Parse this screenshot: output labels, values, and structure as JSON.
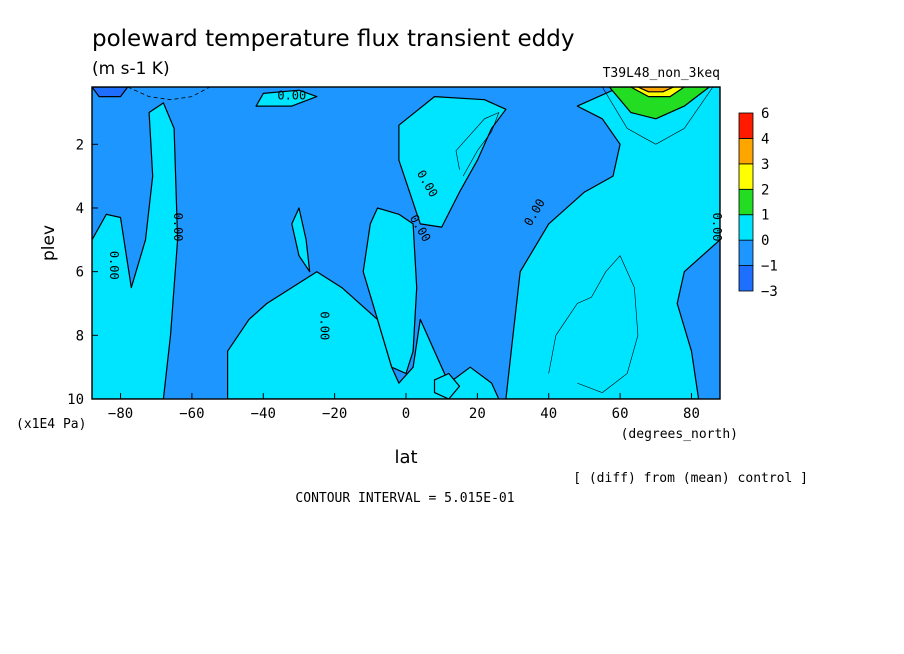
{
  "chart_data": {
    "type": "heatmap",
    "title": "poleward temperature flux transient eddy",
    "units": "(m s-1 K)",
    "run_label": "T39L48_non_3keq",
    "xlabel": "lat",
    "x_units": "(degrees_north)",
    "ylabel": "plev",
    "y_units": "(x1E4 Pa)",
    "xlim": [
      -88,
      88
    ],
    "ylim": [
      10,
      0.2
    ],
    "x_ticks": [
      -80,
      -60,
      -40,
      -20,
      0,
      20,
      40,
      60,
      80
    ],
    "x_tick_labels": [
      "−80",
      "−60",
      "−40",
      "−20",
      "0",
      "20",
      "40",
      "60",
      "80"
    ],
    "y_ticks": [
      2,
      4,
      6,
      8,
      10
    ],
    "y_tick_labels": [
      "2",
      "4",
      "6",
      "8",
      "10"
    ],
    "note": "[ (diff) from (mean) control ]",
    "contour_interval": "CONTOUR INTERVAL = 5.015E-01",
    "contour_label": "0.00",
    "colorbar": {
      "levels": [
        -3,
        -1,
        0,
        1,
        2,
        3,
        4,
        6
      ],
      "level_labels": [
        "−3",
        "−1",
        "0",
        "1",
        "2",
        "3",
        "4",
        "6"
      ],
      "colors": [
        "#1e6fff",
        "#1e96ff",
        "#00e5ff",
        "#22dd22",
        "#ffff00",
        "#ffa500",
        "#ff1a00"
      ]
    },
    "regions": [
      {
        "name": "negative",
        "range": "-1 to 0",
        "color": "#1e96ff",
        "points": [
          [
            -88,
            10
          ],
          [
            -88,
            0.2
          ],
          [
            -55,
            0.2
          ],
          [
            -48,
            0.9
          ],
          [
            -30,
            0.6
          ],
          [
            -20,
            0.4
          ],
          [
            -5,
            1.2
          ],
          [
            2,
            0.6
          ],
          [
            18,
            0.8
          ],
          [
            24,
            1.0
          ],
          [
            30,
            0.5
          ],
          [
            38,
            1.0
          ],
          [
            48,
            1.2
          ],
          [
            55,
            2.0
          ],
          [
            52,
            3.0
          ],
          [
            40,
            4.0
          ],
          [
            32,
            5.0
          ],
          [
            30,
            7.0
          ],
          [
            28,
            8.5
          ],
          [
            28,
            10
          ]
        ]
      },
      {
        "name": "positive-southern",
        "range": "0 to 1",
        "color": "#00e5ff",
        "points": [
          [
            -88,
            10
          ],
          [
            -88,
            5.0
          ],
          [
            -84,
            4.2
          ],
          [
            -80,
            4.3
          ],
          [
            -77,
            6.5
          ],
          [
            -73,
            5.0
          ],
          [
            -71,
            3.0
          ],
          [
            -72,
            1.0
          ],
          [
            -68,
            0.7
          ],
          [
            -65,
            1.5
          ],
          [
            -64,
            5.0
          ],
          [
            -66,
            8.0
          ],
          [
            -68,
            10
          ]
        ]
      },
      {
        "name": "positive-midlatitude",
        "range": "0 to 1",
        "color": "#00e5ff",
        "points": [
          [
            -50,
            10
          ],
          [
            -50,
            8.5
          ],
          [
            -44,
            7.5
          ],
          [
            -39,
            7.0
          ],
          [
            -32,
            6.5
          ],
          [
            -25,
            6.0
          ],
          [
            -18,
            6.5
          ],
          [
            -8,
            7.5
          ],
          [
            -4,
            9.0
          ],
          [
            -2,
            9.5
          ],
          [
            2,
            9.0
          ],
          [
            4,
            7.5
          ],
          [
            8,
            8.5
          ],
          [
            12,
            9.5
          ],
          [
            18,
            9.0
          ],
          [
            24,
            9.5
          ],
          [
            26,
            10
          ]
        ]
      },
      {
        "name": "positive-center",
        "range": "0 to 1",
        "color": "#00e5ff",
        "points": [
          [
            -12,
            6.0
          ],
          [
            -10,
            4.5
          ],
          [
            -8,
            4.0
          ],
          [
            -2,
            4.2
          ],
          [
            2,
            4.5
          ],
          [
            3,
            6.5
          ],
          [
            2,
            8.5
          ],
          [
            0,
            9.2
          ],
          [
            -4,
            9.0
          ],
          [
            -8,
            7.5
          ]
        ]
      },
      {
        "name": "positive-upper-tropics",
        "range": "0 to 1",
        "color": "#00e5ff",
        "points": [
          [
            -2,
            2.5
          ],
          [
            -2,
            1.4
          ],
          [
            8,
            0.5
          ],
          [
            22,
            0.6
          ],
          [
            28,
            0.9
          ],
          [
            24,
            1.5
          ],
          [
            20,
            2.5
          ],
          [
            15,
            3.5
          ],
          [
            10,
            4.6
          ],
          [
            4,
            4.5
          ]
        ]
      },
      {
        "name": "positive-northern",
        "range": "0 to 1",
        "color": "#00e5ff",
        "points": [
          [
            28,
            10
          ],
          [
            30,
            8.0
          ],
          [
            32,
            6.0
          ],
          [
            40,
            4.5
          ],
          [
            50,
            3.5
          ],
          [
            58,
            3.0
          ],
          [
            60,
            2.0
          ],
          [
            55,
            1.2
          ],
          [
            48,
            0.8
          ],
          [
            60,
            0.2
          ],
          [
            88,
            0.2
          ],
          [
            88,
            5.0
          ],
          [
            78,
            6.0
          ],
          [
            76,
            7.0
          ],
          [
            80,
            8.5
          ],
          [
            82,
            10
          ]
        ]
      },
      {
        "name": "positive-southpole-upper",
        "range": "0 to 1",
        "color": "#00e5ff",
        "points": [
          [
            -40,
            0.4
          ],
          [
            -30,
            0.3
          ],
          [
            -25,
            0.5
          ],
          [
            -32,
            0.8
          ],
          [
            -42,
            0.8
          ]
        ]
      },
      {
        "name": "positive-small-south",
        "range": "0 to 1",
        "color": "#00e5ff",
        "points": [
          [
            -30,
            4.0
          ],
          [
            -28,
            5.0
          ],
          [
            -27,
            6.0
          ],
          [
            -30,
            5.5
          ],
          [
            -32,
            4.5
          ]
        ]
      },
      {
        "name": "positive-small-tropics",
        "range": "0 to 1",
        "color": "#00e5ff",
        "points": [
          [
            8,
            9.4
          ],
          [
            12,
            9.2
          ],
          [
            15,
            9.6
          ],
          [
            12,
            10
          ],
          [
            8,
            9.8
          ]
        ]
      },
      {
        "name": "band-1-2",
        "range": "1 to 2",
        "color": "#22dd22",
        "points": [
          [
            57,
            0.2
          ],
          [
            85,
            0.2
          ],
          [
            78,
            0.8
          ],
          [
            70,
            1.2
          ],
          [
            63,
            1.0
          ]
        ]
      },
      {
        "name": "band-2-3",
        "range": "2 to 3",
        "color": "#ffff00",
        "points": [
          [
            63,
            0.2
          ],
          [
            78,
            0.2
          ],
          [
            74,
            0.5
          ],
          [
            68,
            0.5
          ]
        ]
      },
      {
        "name": "band-3-4",
        "range": "3 to 4",
        "color": "#ffa500",
        "points": [
          [
            65,
            0.2
          ],
          [
            75,
            0.2
          ],
          [
            72,
            0.35
          ],
          [
            68,
            0.35
          ]
        ]
      },
      {
        "name": "band-below-minus-1",
        "range": "-3 to -1",
        "color": "#1e6fff",
        "points": [
          [
            -88,
            0.2
          ],
          [
            -78,
            0.2
          ],
          [
            -80,
            0.5
          ],
          [
            -86,
            0.5
          ]
        ]
      }
    ],
    "zero_labels": [
      {
        "lat": -32,
        "plev": 0.6
      },
      {
        "lat": -65,
        "plev": 4.6
      },
      {
        "lat": -83,
        "plev": 5.8
      },
      {
        "lat": 5,
        "plev": 3.3
      },
      {
        "lat": 3,
        "plev": 4.7
      },
      {
        "lat": 37,
        "plev": 4.2
      },
      {
        "lat": -24,
        "plev": 7.7
      },
      {
        "lat": 86,
        "plev": 4.6
      }
    ],
    "thin_contours": [
      [
        [
          15,
          2.8
        ],
        [
          14,
          2.2
        ],
        [
          18,
          1.7
        ],
        [
          22,
          1.2
        ],
        [
          26,
          1.0
        ],
        [
          24,
          1.6
        ],
        [
          20,
          2.2
        ],
        [
          16,
          3.0
        ]
      ],
      [
        [
          40,
          9.2
        ],
        [
          42,
          8.0
        ],
        [
          48,
          7.0
        ],
        [
          52,
          6.8
        ],
        [
          56,
          6.0
        ],
        [
          60,
          5.5
        ],
        [
          64,
          6.5
        ],
        [
          65,
          8.0
        ],
        [
          62,
          9.2
        ],
        [
          55,
          9.8
        ],
        [
          48,
          9.5
        ]
      ],
      [
        [
          55,
          0.2
        ],
        [
          62,
          1.5
        ],
        [
          70,
          2.0
        ],
        [
          78,
          1.5
        ],
        [
          86,
          0.2
        ]
      ]
    ],
    "dashed_contours": [
      [
        [
          -78,
          0.2
        ],
        [
          -72,
          0.5
        ],
        [
          -66,
          0.6
        ],
        [
          -60,
          0.5
        ],
        [
          -55,
          0.2
        ]
      ]
    ]
  }
}
